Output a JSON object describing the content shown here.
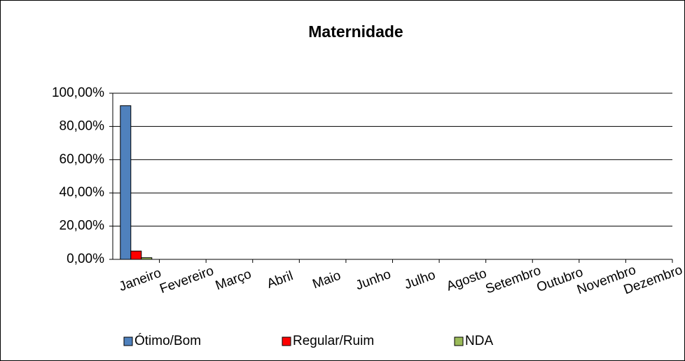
{
  "chart_data": {
    "type": "bar",
    "title": "Maternidade",
    "categories": [
      "Janeiro",
      "Fevereiro",
      "Março",
      "Abril",
      "Maio",
      "Junho",
      "Julho",
      "Agosto",
      "Setembro",
      "Outubro",
      "Novembro",
      "Dezembro"
    ],
    "series": [
      {
        "name": "Ótimo/Bom",
        "color": "#4f81bd",
        "values": [
          92.5,
          null,
          null,
          null,
          null,
          null,
          null,
          null,
          null,
          null,
          null,
          null
        ]
      },
      {
        "name": "Regular/Ruim",
        "color": "#ff0000",
        "values": [
          5,
          null,
          null,
          null,
          null,
          null,
          null,
          null,
          null,
          null,
          null,
          null
        ]
      },
      {
        "name": "NDA",
        "color": "#9bbb59",
        "values": [
          1,
          null,
          null,
          null,
          null,
          null,
          null,
          null,
          null,
          null,
          null,
          null
        ]
      }
    ],
    "ylim": [
      0,
      100
    ],
    "yticks": [
      {
        "value": 0,
        "label": "0,00%"
      },
      {
        "value": 20,
        "label": "20,00%"
      },
      {
        "value": 40,
        "label": "40,00%"
      },
      {
        "value": 60,
        "label": "60,00%"
      },
      {
        "value": 80,
        "label": "80,00%"
      },
      {
        "value": 100,
        "label": "100,00%"
      }
    ],
    "grid": true,
    "legend": "bottom"
  }
}
